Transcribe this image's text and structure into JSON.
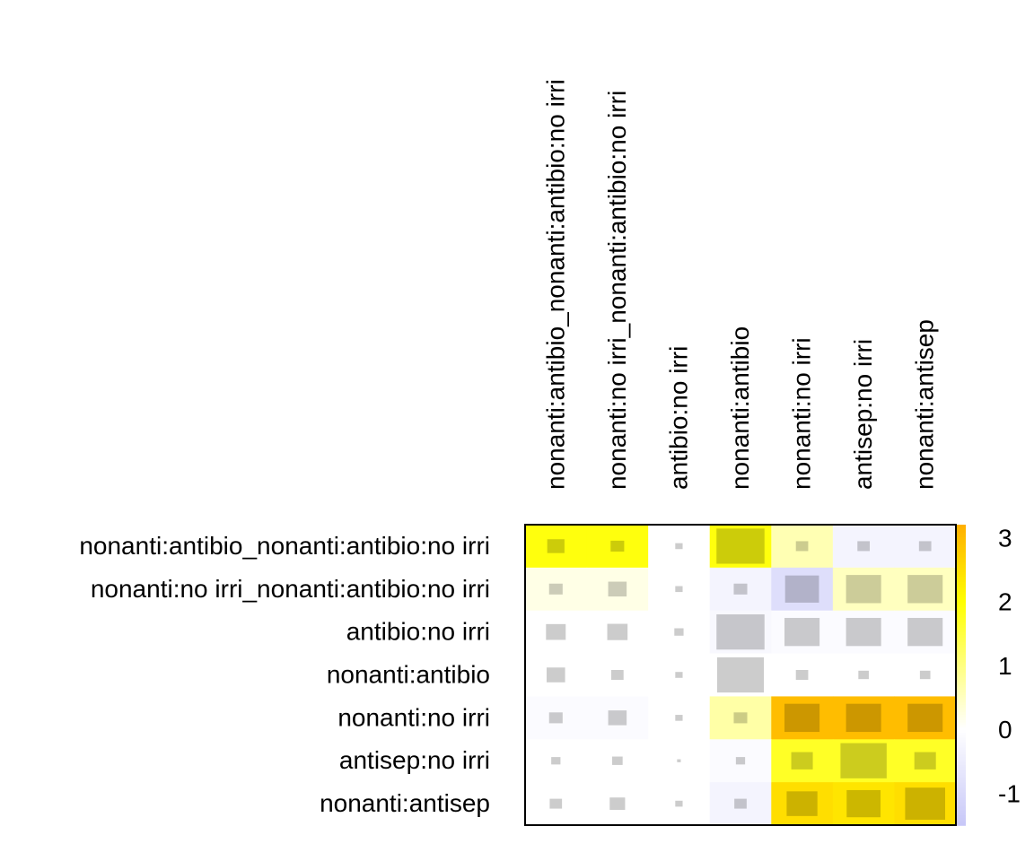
{
  "chart_data": {
    "type": "heatmap",
    "rows": [
      "nonanti:antibio_nonanti:antibio:no irri",
      "nonanti:no irri_nonanti:antibio:no irri",
      "antibio:no irri",
      "nonanti:antibio",
      "nonanti:no irri",
      "antisep:no irri",
      "nonanti:antisep"
    ],
    "columns": [
      "nonanti:antibio_nonanti:antibio:no irri",
      "nonanti:no irri_nonanti:antibio:no irri",
      "antibio:no irri",
      "nonanti:antibio",
      "nonanti:no irri",
      "antisep:no irri",
      "nonanti:antisep"
    ],
    "values": [
      [
        1.9,
        1.9,
        0.0,
        1.9,
        0.6,
        -0.3,
        -0.3
      ],
      [
        0.2,
        0.2,
        0.0,
        -0.3,
        -0.9,
        0.5,
        0.5
      ],
      [
        0.0,
        0.0,
        0.0,
        -0.2,
        -0.1,
        -0.1,
        -0.1
      ],
      [
        0.0,
        0.0,
        0.0,
        0.0,
        0.0,
        0.0,
        0.0
      ],
      [
        -0.1,
        -0.1,
        0.0,
        0.7,
        3.0,
        3.0,
        3.0
      ],
      [
        0.0,
        0.0,
        0.0,
        -0.1,
        1.7,
        1.7,
        1.7
      ],
      [
        0.0,
        0.0,
        0.0,
        -0.3,
        2.5,
        2.4,
        2.5
      ]
    ],
    "inner_square_size": [
      [
        0.28,
        0.22,
        0.12,
        0.78,
        0.2,
        0.2,
        0.2
      ],
      [
        0.22,
        0.3,
        0.12,
        0.22,
        0.55,
        0.57,
        0.57
      ],
      [
        0.32,
        0.33,
        0.15,
        0.78,
        0.57,
        0.57,
        0.57
      ],
      [
        0.3,
        0.2,
        0.12,
        0.76,
        0.2,
        0.17,
        0.17
      ],
      [
        0.22,
        0.3,
        0.12,
        0.22,
        0.57,
        0.57,
        0.57
      ],
      [
        0.15,
        0.17,
        0.06,
        0.15,
        0.35,
        0.75,
        0.35
      ],
      [
        0.2,
        0.25,
        0.12,
        0.2,
        0.5,
        0.55,
        0.65
      ]
    ],
    "color_scale": {
      "min": -1.5,
      "max": 3.2,
      "tick_labels": [
        "3",
        "2",
        "1",
        "0",
        "-1"
      ],
      "ticks": [
        3,
        2,
        1,
        0,
        -1
      ],
      "low_color": "#c8c8f8",
      "mid_color": "#ffffff",
      "high_yellow": "#ffff00",
      "high_orange": "#ffb000"
    },
    "grid": false,
    "legend": "right"
  }
}
